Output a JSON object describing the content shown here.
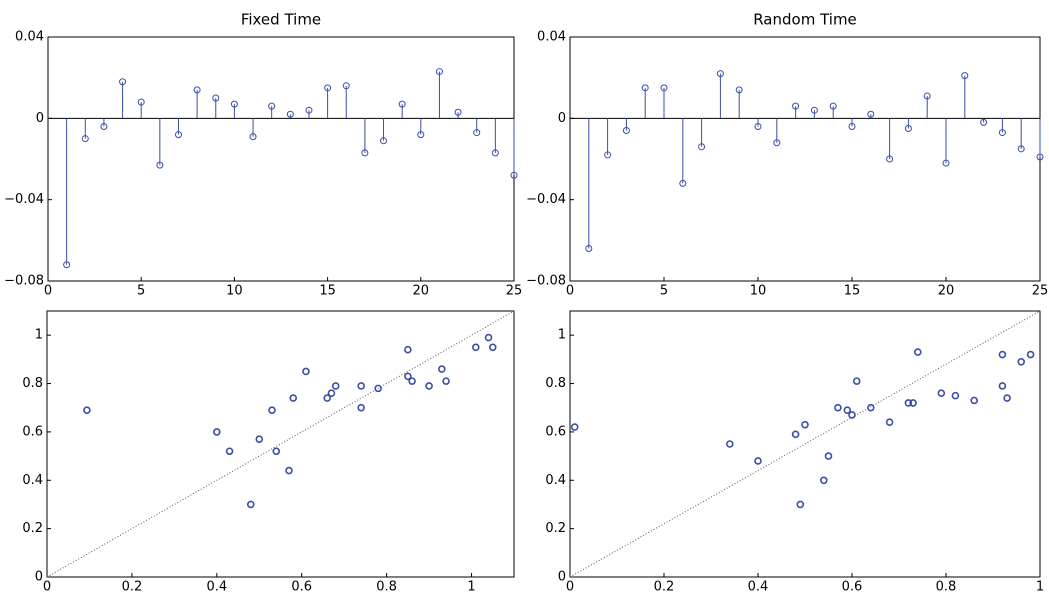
{
  "chart_data": [
    {
      "type": "stem",
      "title": "Fixed Time",
      "color": "#3a4ea6",
      "x": [
        1,
        2,
        3,
        4,
        5,
        6,
        7,
        8,
        9,
        10,
        11,
        12,
        13,
        14,
        15,
        16,
        17,
        18,
        19,
        20,
        21,
        22,
        23,
        24,
        25
      ],
      "values": [
        -0.072,
        -0.01,
        -0.004,
        0.018,
        0.008,
        -0.023,
        -0.008,
        0.014,
        0.01,
        0.007,
        -0.009,
        0.006,
        0.002,
        0.004,
        0.015,
        0.016,
        -0.017,
        -0.011,
        0.007,
        -0.008,
        0.023,
        0.003,
        -0.007,
        -0.017,
        -0.028
      ],
      "xlim": [
        0,
        25
      ],
      "ylim": [
        -0.08,
        0.04
      ],
      "xticks": [
        0,
        5,
        10,
        15,
        20,
        25
      ],
      "yticks": [
        {
          "value": -0.08,
          "label": "−0.08"
        },
        {
          "value": -0.04,
          "label": "−0.04"
        },
        0,
        0.04
      ]
    },
    {
      "type": "stem",
      "title": "Random Time",
      "color": "#3a4ea6",
      "x": [
        1,
        2,
        3,
        4,
        5,
        6,
        7,
        8,
        9,
        10,
        11,
        12,
        13,
        14,
        15,
        16,
        17,
        18,
        19,
        20,
        21,
        22,
        23,
        24,
        25
      ],
      "values": [
        -0.064,
        -0.018,
        -0.006,
        0.015,
        0.015,
        -0.032,
        -0.014,
        0.022,
        0.014,
        -0.004,
        -0.012,
        0.006,
        0.004,
        0.006,
        -0.004,
        0.002,
        -0.02,
        -0.005,
        0.011,
        -0.022,
        0.021,
        -0.002,
        -0.007,
        -0.015,
        -0.019
      ],
      "xlim": [
        0,
        25
      ],
      "ylim": [
        -0.08,
        0.04
      ],
      "xticks": [
        0,
        5,
        10,
        15,
        20,
        25
      ],
      "yticks": [
        {
          "value": -0.08,
          "label": "−0.08"
        },
        {
          "value": -0.04,
          "label": "−0.04"
        },
        0,
        0.04
      ]
    },
    {
      "type": "scatter",
      "color": "#3a4ea6",
      "x": [
        0.094,
        0.4,
        0.43,
        0.48,
        0.5,
        0.53,
        0.54,
        0.57,
        0.58,
        0.61,
        0.66,
        0.67,
        0.68,
        0.74,
        0.74,
        0.78,
        0.85,
        0.85,
        0.86,
        0.9,
        0.93,
        0.94,
        1.01,
        1.04,
        1.05
      ],
      "values": [
        0.69,
        0.6,
        0.52,
        0.3,
        0.57,
        0.69,
        0.52,
        0.44,
        0.74,
        0.85,
        0.74,
        0.76,
        0.79,
        0.79,
        0.7,
        0.78,
        0.83,
        0.94,
        0.81,
        0.79,
        0.86,
        0.81,
        0.95,
        0.99,
        0.95
      ],
      "xlim": [
        0,
        1.1
      ],
      "ylim": [
        0,
        1.1
      ],
      "xticks": [
        0,
        0.2,
        0.4,
        0.6,
        0.8,
        1
      ],
      "yticks": [
        0,
        0.2,
        0.4,
        0.6,
        0.8,
        1
      ]
    },
    {
      "type": "scatter",
      "color": "#3a4ea6",
      "x": [
        0.01,
        0.34,
        0.4,
        0.48,
        0.49,
        0.5,
        0.55,
        0.54,
        0.57,
        0.59,
        0.6,
        0.61,
        0.64,
        0.68,
        0.72,
        0.73,
        0.74,
        0.79,
        0.82,
        0.86,
        0.92,
        0.92,
        0.93,
        0.96,
        0.98
      ],
      "values": [
        0.62,
        0.55,
        0.48,
        0.59,
        0.3,
        0.63,
        0.5,
        0.4,
        0.7,
        0.69,
        0.67,
        0.81,
        0.7,
        0.64,
        0.72,
        0.72,
        0.93,
        0.76,
        0.75,
        0.73,
        0.92,
        0.79,
        0.74,
        0.89,
        0.92
      ],
      "xlim": [
        0,
        1
      ],
      "ylim": [
        0,
        1.1
      ],
      "xticks": [
        0,
        0.2,
        0.4,
        0.6,
        0.8,
        1
      ],
      "yticks": [
        0,
        0.2,
        0.4,
        0.6,
        0.8,
        1
      ]
    }
  ]
}
